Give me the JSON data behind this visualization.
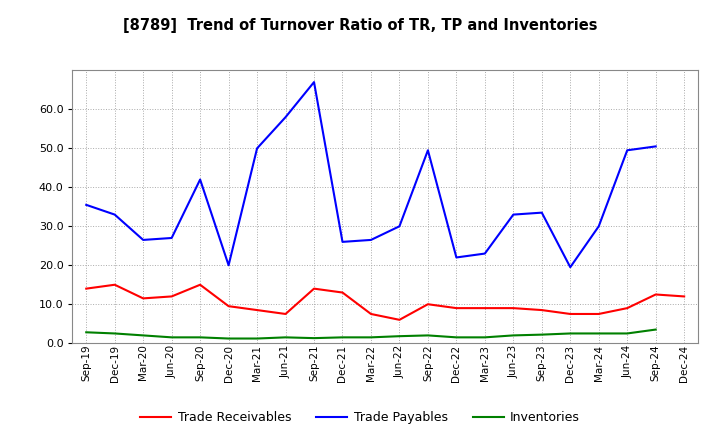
{
  "title": "[8789]  Trend of Turnover Ratio of TR, TP and Inventories",
  "x_labels": [
    "Sep-19",
    "Dec-19",
    "Mar-20",
    "Jun-20",
    "Sep-20",
    "Dec-20",
    "Mar-21",
    "Jun-21",
    "Sep-21",
    "Dec-21",
    "Mar-22",
    "Jun-22",
    "Sep-22",
    "Dec-22",
    "Mar-23",
    "Jun-23",
    "Sep-23",
    "Dec-23",
    "Mar-24",
    "Jun-24",
    "Sep-24",
    "Dec-24"
  ],
  "trade_receivables": [
    14.0,
    15.0,
    11.5,
    12.0,
    15.0,
    9.5,
    8.5,
    7.5,
    14.0,
    13.0,
    7.5,
    6.0,
    10.0,
    9.0,
    9.0,
    9.0,
    8.5,
    7.5,
    7.5,
    9.0,
    12.5,
    12.0
  ],
  "trade_payables": [
    35.5,
    33.0,
    26.5,
    27.0,
    42.0,
    20.0,
    50.0,
    58.0,
    67.0,
    26.0,
    26.5,
    30.0,
    49.5,
    22.0,
    23.0,
    33.0,
    33.5,
    19.5,
    30.0,
    49.5,
    50.5,
    null
  ],
  "inventories": [
    2.8,
    2.5,
    2.0,
    1.5,
    1.5,
    1.2,
    1.2,
    1.5,
    1.3,
    1.5,
    1.5,
    1.8,
    2.0,
    1.5,
    1.5,
    2.0,
    2.2,
    2.5,
    2.5,
    2.5,
    3.5,
    null
  ],
  "ylim": [
    0,
    70
  ],
  "yticks": [
    0.0,
    10.0,
    20.0,
    30.0,
    40.0,
    50.0,
    60.0
  ],
  "colors": {
    "trade_receivables": "#ff0000",
    "trade_payables": "#0000ff",
    "inventories": "#008000"
  },
  "background_color": "#ffffff",
  "grid_color": "#aaaaaa",
  "legend_labels": [
    "Trade Receivables",
    "Trade Payables",
    "Inventories"
  ]
}
